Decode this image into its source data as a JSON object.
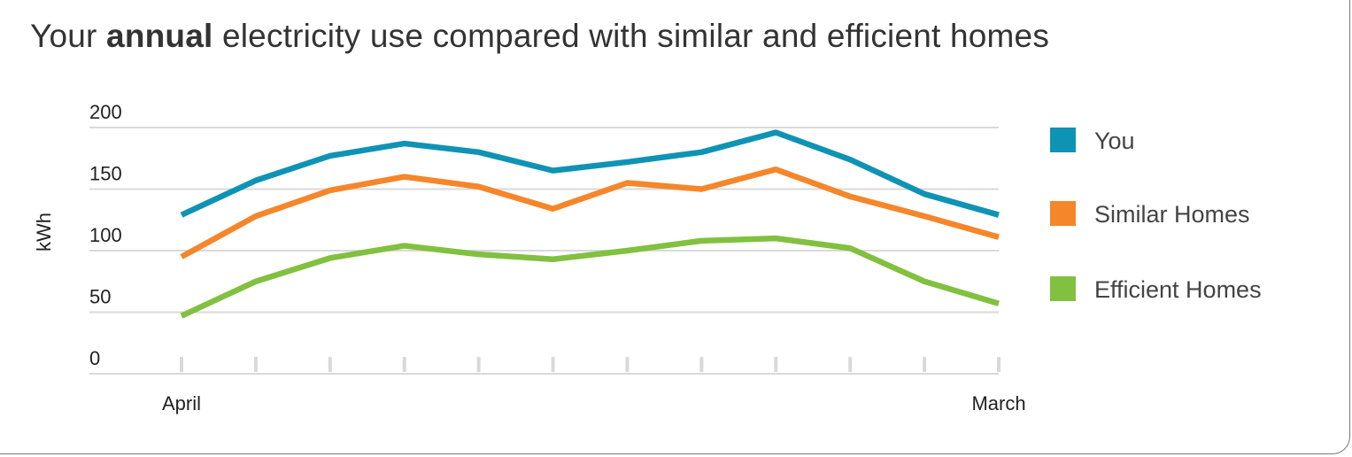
{
  "title": {
    "prefix": "Your ",
    "emphasis": "annual",
    "suffix": " electricity use compared with similar and efficient homes"
  },
  "chart_data": {
    "type": "line",
    "title": "Your annual electricity use compared with similar and efficient homes",
    "ylabel": "kWh",
    "xlabel": "",
    "ylim": [
      0,
      200
    ],
    "yticks": [
      "0",
      "50",
      "100",
      "150",
      "200"
    ],
    "x_tick_labels": [
      "April",
      "March"
    ],
    "num_points": 12,
    "grid": true,
    "legend_position": "right",
    "series": [
      {
        "name": "You",
        "color": "#0f93b5",
        "values": [
          129,
          157,
          177,
          187,
          180,
          165,
          172,
          180,
          196,
          174,
          146,
          129
        ]
      },
      {
        "name": "Similar Homes",
        "color": "#f5862a",
        "values": [
          95,
          128,
          149,
          160,
          152,
          134,
          155,
          150,
          166,
          144,
          128,
          111
        ]
      },
      {
        "name": "Efficient Homes",
        "color": "#82c040",
        "values": [
          47,
          75,
          94,
          104,
          97,
          93,
          100,
          108,
          110,
          102,
          75,
          57
        ]
      }
    ]
  }
}
